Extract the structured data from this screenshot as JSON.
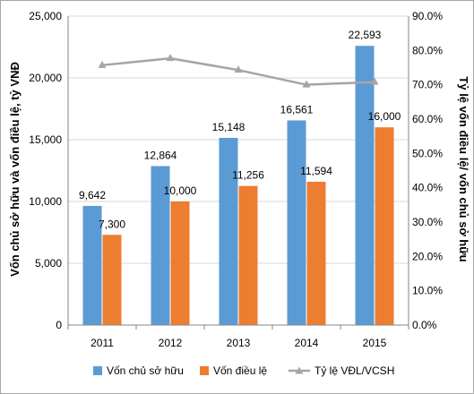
{
  "chart_data": {
    "type": "bar",
    "categories": [
      "2011",
      "2012",
      "2013",
      "2014",
      "2015"
    ],
    "series": [
      {
        "name": "Vốn chủ sở hữu",
        "values": [
          9642,
          12864,
          15148,
          16561,
          22593
        ],
        "color": "#5b9bd5",
        "axis": "left",
        "labels": [
          "9,642",
          "12,864",
          "15,148",
          "16,561",
          "22,593"
        ]
      },
      {
        "name": "Vốn điều lệ",
        "values": [
          7300,
          10000,
          11256,
          11594,
          16000
        ],
        "color": "#ed7d31",
        "axis": "left",
        "labels": [
          "7,300",
          "10,000",
          "11,256",
          "11,594",
          "16,000"
        ]
      },
      {
        "name": "Tỷ lệ VĐL/VCSH",
        "type": "line",
        "values": [
          75.7,
          77.7,
          74.3,
          70.0,
          70.8
        ],
        "color": "#a5a5a5",
        "axis": "right"
      }
    ],
    "ylabel": "Vốn chủ sở hữu và vốn điều lệ, tỷ VNĐ",
    "ylabel_right": "Tỷ lệ vốn điều lệ/ vốn chủ sở hữu",
    "ylim": [
      0,
      25000
    ],
    "ylim_right": [
      0,
      90
    ],
    "yticks": [
      "0",
      "5,000",
      "10,000",
      "15,000",
      "20,000",
      "25,000"
    ],
    "yticks_right": [
      "0.0%",
      "10.0%",
      "20.0%",
      "30.0%",
      "40.0%",
      "50.0%",
      "60.0%",
      "70.0%",
      "80.0%",
      "90.0%"
    ],
    "grid": true,
    "legend_position": "bottom"
  }
}
